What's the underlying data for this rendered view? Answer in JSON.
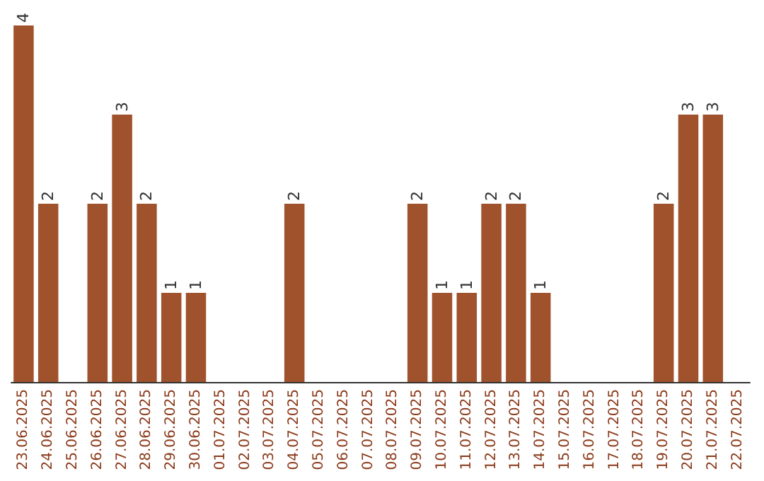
{
  "chart_data": {
    "type": "bar",
    "categories": [
      "23.06.2025",
      "24.06.2025",
      "25.06.2025",
      "26.06.2025",
      "27.06.2025",
      "28.06.2025",
      "29.06.2025",
      "30.06.2025",
      "01.07.2025",
      "02.07.2025",
      "03.07.2025",
      "04.07.2025",
      "05.07.2025",
      "06.07.2025",
      "07.07.2025",
      "08.07.2025",
      "09.07.2025",
      "10.07.2025",
      "11.07.2025",
      "12.07.2025",
      "13.07.2025",
      "14.07.2025",
      "15.07.2025",
      "16.07.2025",
      "17.07.2025",
      "18.07.2025",
      "19.07.2025",
      "20.07.2025",
      "21.07.2025",
      "22.07.2025"
    ],
    "values": [
      4,
      2,
      0,
      2,
      3,
      2,
      1,
      1,
      0,
      0,
      0,
      2,
      0,
      0,
      0,
      0,
      2,
      1,
      1,
      2,
      2,
      1,
      0,
      0,
      0,
      0,
      2,
      3,
      3,
      0
    ],
    "value_labels": [
      "4",
      "2",
      null,
      "2",
      "3",
      "2",
      "1",
      "1",
      null,
      null,
      null,
      "2",
      null,
      null,
      null,
      null,
      "2",
      "1",
      "1",
      "2",
      "2",
      "1",
      null,
      null,
      null,
      null,
      "2",
      "3",
      "3",
      null
    ],
    "color": "#a0522d",
    "grid": false,
    "tick_labels": "x"
  }
}
